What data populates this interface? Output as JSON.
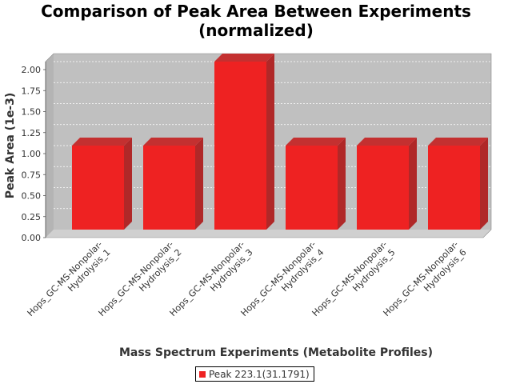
{
  "chart_data": {
    "type": "bar",
    "title_lines": [
      "Comparison of Peak Area Between Experiments",
      "(normalized)"
    ],
    "xlabel": "Mass Spectrum Experiments (Metabolite Profiles)",
    "ylabel": "Peak Area (1e-3)",
    "categories": [
      [
        "Hops_GC-MS-Nonpolar-",
        "Hydrolysis_1"
      ],
      [
        "Hops_GC-MS-Nonpolar-",
        "Hydrolysis_2"
      ],
      [
        "Hops_GC-MS-Nonpolar-",
        "Hydrolysis_3"
      ],
      [
        "Hops_GC-MS-Nonpolar-",
        "Hydrolysis_4"
      ],
      [
        "Hops_GC-MS-Nonpolar-",
        "Hydrolysis_5"
      ],
      [
        "Hops_GC-MS-Nonpolar-",
        "Hydrolysis_6"
      ]
    ],
    "series": [
      {
        "name": "Peak 223.1(31.1791)",
        "color": "#ee2222",
        "values": [
          1.0,
          1.0,
          2.0,
          1.0,
          1.0,
          1.0
        ]
      }
    ],
    "ylim": [
      0,
      2.0
    ],
    "yticks": [
      "0.00",
      "0.25",
      "0.50",
      "0.75",
      "1.00",
      "1.25",
      "1.50",
      "1.75",
      "2.00"
    ],
    "grid": true,
    "legend_position": "bottom",
    "style": "3d-bar",
    "background_color": "#c0c0c0"
  }
}
